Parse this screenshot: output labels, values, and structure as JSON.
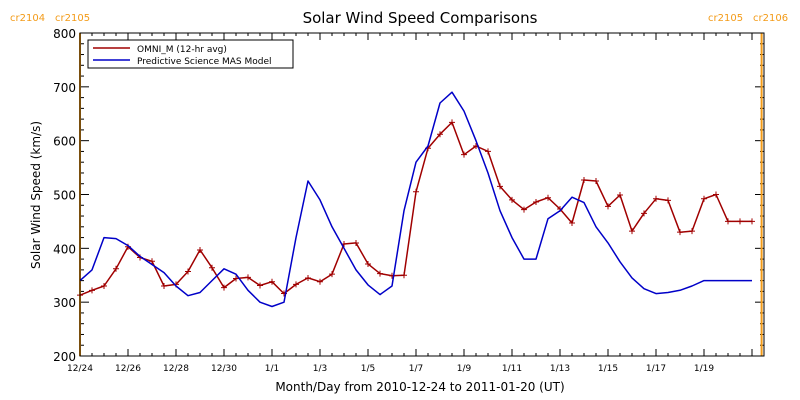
{
  "chart_data": {
    "type": "line",
    "title": "Solar Wind Speed Comparisons",
    "xlabel": "Month/Day from 2010-12-24 to 2011-01-20 (UT)",
    "ylabel": "Solar Wind Speed (km/s)",
    "xlim": [
      0,
      28.5
    ],
    "ylim": [
      200,
      800
    ],
    "y_major_ticks": [
      200,
      300,
      400,
      500,
      600,
      700,
      800
    ],
    "x_tick_labels": [
      {
        "day": 0,
        "label": "12/24"
      },
      {
        "day": 2,
        "label": "12/26"
      },
      {
        "day": 4,
        "label": "12/28"
      },
      {
        "day": 6,
        "label": "12/30"
      },
      {
        "day": 8,
        "label": "1/1"
      },
      {
        "day": 10,
        "label": "1/3"
      },
      {
        "day": 12,
        "label": "1/5"
      },
      {
        "day": 14,
        "label": "1/7"
      },
      {
        "day": 16,
        "label": "1/9"
      },
      {
        "day": 18,
        "label": "1/11"
      },
      {
        "day": 20,
        "label": "1/13"
      },
      {
        "day": 22,
        "label": "1/15"
      },
      {
        "day": 24,
        "label": "1/17"
      },
      {
        "day": 26,
        "label": "1/19"
      }
    ],
    "rotation_markers": [
      {
        "day": 0,
        "left_label": "cr2104",
        "right_label": "cr2105",
        "position": "top-left"
      },
      {
        "day": 28.4,
        "left_label": "cr2105",
        "right_label": "cr2106",
        "position": "top-right"
      }
    ],
    "legend_position": "top-left",
    "series": [
      {
        "name": "OMNI_M (12-hr avg)",
        "color": "#a00000",
        "marker": "plus",
        "x": [
          0,
          0.5,
          1,
          1.5,
          2,
          2.5,
          3,
          3.5,
          4,
          4.5,
          5,
          5.5,
          6,
          6.5,
          7,
          7.5,
          8,
          8.5,
          9,
          9.5,
          10,
          10.5,
          11,
          11.5,
          12,
          12.5,
          13,
          13.5,
          14,
          14.5,
          15,
          15.5,
          16,
          16.5,
          17,
          17.5,
          18,
          18.5,
          19,
          19.5,
          20,
          20.5,
          21,
          21.5,
          22,
          22.5,
          23,
          23.5,
          24,
          24.5,
          25,
          25.5,
          26,
          26.5,
          27,
          27.5,
          28
        ],
        "y": [
          313,
          322,
          330,
          362,
          403,
          383,
          376,
          330,
          333,
          357,
          397,
          364,
          327,
          344,
          346,
          331,
          338,
          316,
          333,
          345,
          338,
          352,
          408,
          410,
          371,
          353,
          349,
          350,
          505,
          586,
          612,
          634,
          574,
          590,
          580,
          515,
          490,
          472,
          486,
          494,
          473,
          447,
          527,
          525,
          478,
          499,
          432,
          465,
          492,
          489,
          430,
          432,
          492,
          500,
          450,
          450,
          450
        ]
      },
      {
        "name": "Predictive Science MAS Model",
        "color": "#0000c8",
        "marker": "none",
        "x": [
          0,
          0.5,
          1,
          1.5,
          2,
          2.5,
          3,
          3.5,
          4,
          4.5,
          5,
          5.5,
          6,
          6.5,
          7,
          7.5,
          8,
          8.5,
          9,
          9.5,
          10,
          10.5,
          11,
          11.5,
          12,
          12.5,
          13,
          13.5,
          14,
          14.5,
          15,
          15.5,
          16,
          16.5,
          17,
          17.5,
          18,
          18.5,
          19,
          19.5,
          20,
          20.5,
          21,
          21.5,
          22,
          22.5,
          23,
          23.5,
          24,
          24.5,
          25,
          25.5,
          26,
          26.5,
          27,
          27.5,
          28
        ],
        "y": [
          340,
          360,
          420,
          418,
          405,
          385,
          370,
          355,
          330,
          312,
          318,
          340,
          362,
          352,
          322,
          300,
          292,
          300,
          420,
          525,
          490,
          440,
          400,
          360,
          332,
          314,
          330,
          470,
          560,
          590,
          670,
          690,
          655,
          600,
          540,
          470,
          420,
          380,
          380,
          455,
          470,
          495,
          485,
          440,
          410,
          375,
          345,
          325,
          316,
          318,
          322,
          330,
          340,
          340,
          340,
          340,
          340
        ]
      }
    ]
  }
}
